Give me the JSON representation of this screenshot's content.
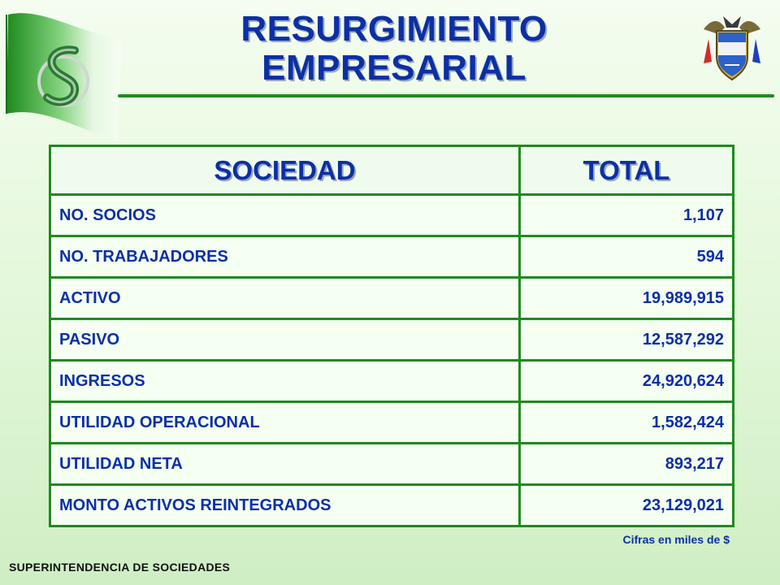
{
  "title": {
    "line1": "RESURGIMIENTO",
    "line2": "EMPRESARIAL"
  },
  "logo": {
    "icon": "superintendencia-flag-logo-icon",
    "flag_color": "#2f9a2f"
  },
  "crest": {
    "icon": "colombia-coat-of-arms-icon"
  },
  "table": {
    "headers": [
      "SOCIEDAD",
      "TOTAL"
    ],
    "rows": [
      {
        "label": "NO. SOCIOS",
        "value": "1,107"
      },
      {
        "label": "NO. TRABAJADORES",
        "value": "594"
      },
      {
        "label": "ACTIVO",
        "value": "19,989,915"
      },
      {
        "label": "PASIVO",
        "value": "12,587,292"
      },
      {
        "label": "INGRESOS",
        "value": "24,920,624"
      },
      {
        "label": "UTILIDAD OPERACIONAL",
        "value": "1,582,424"
      },
      {
        "label": "UTILIDAD NETA",
        "value": "893,217"
      },
      {
        "label": "MONTO ACTIVOS REINTEGRADOS",
        "value": "23,129,021"
      }
    ]
  },
  "footnote": "Cifras en miles de $",
  "footer": "SUPERINTENDENCIA DE SOCIEDADES",
  "colors": {
    "text": "#0b2fa6",
    "border": "#1f8a1f",
    "footer_text": "#111111"
  }
}
